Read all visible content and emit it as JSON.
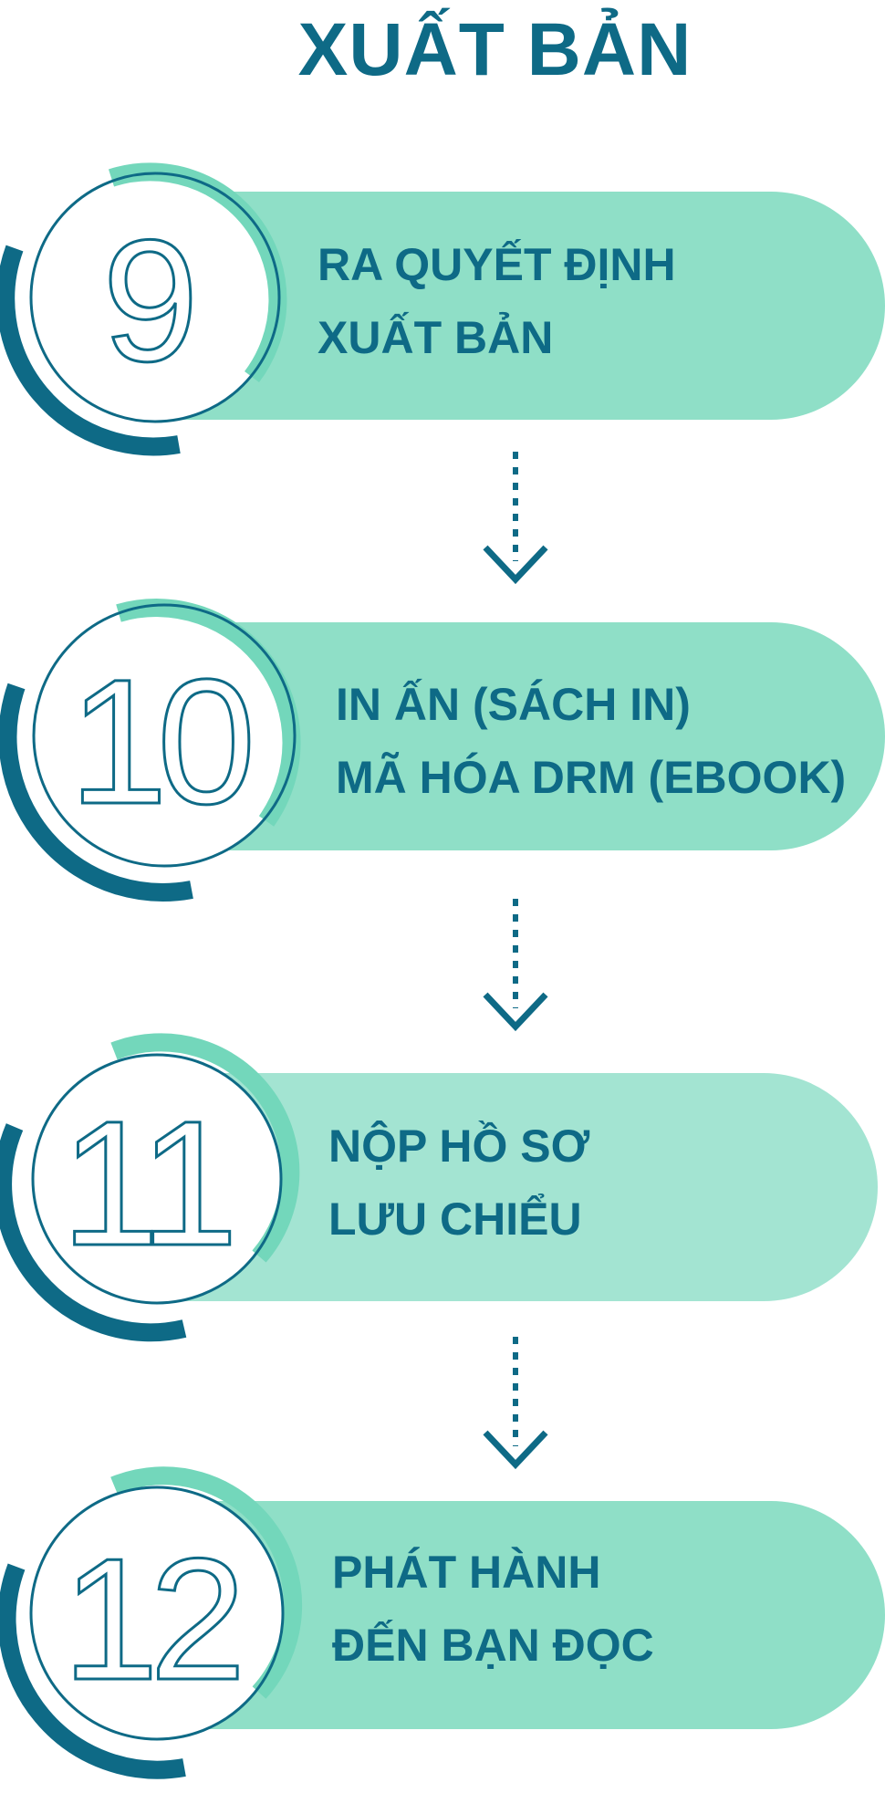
{
  "title": "XUẤT BẢN",
  "colors": {
    "primary": "#0e6a86",
    "pill": "#8fdfc7",
    "pill_light": "#a3e4d2",
    "ring_accent": "#73d7bb"
  },
  "steps": [
    {
      "number": "9",
      "line1": "RA QUYẾT ĐỊNH",
      "line2": "XUẤT BẢN"
    },
    {
      "number": "10",
      "line1": "IN ẤN (SÁCH IN)",
      "line2": "MÃ HÓA DRM (EBOOK)"
    },
    {
      "number": "11",
      "line1": "NỘP HỒ SƠ",
      "line2": "LƯU CHIỂU"
    },
    {
      "number": "12",
      "line1": "PHÁT HÀNH",
      "line2": "ĐẾN BẠN ĐỌC"
    }
  ]
}
